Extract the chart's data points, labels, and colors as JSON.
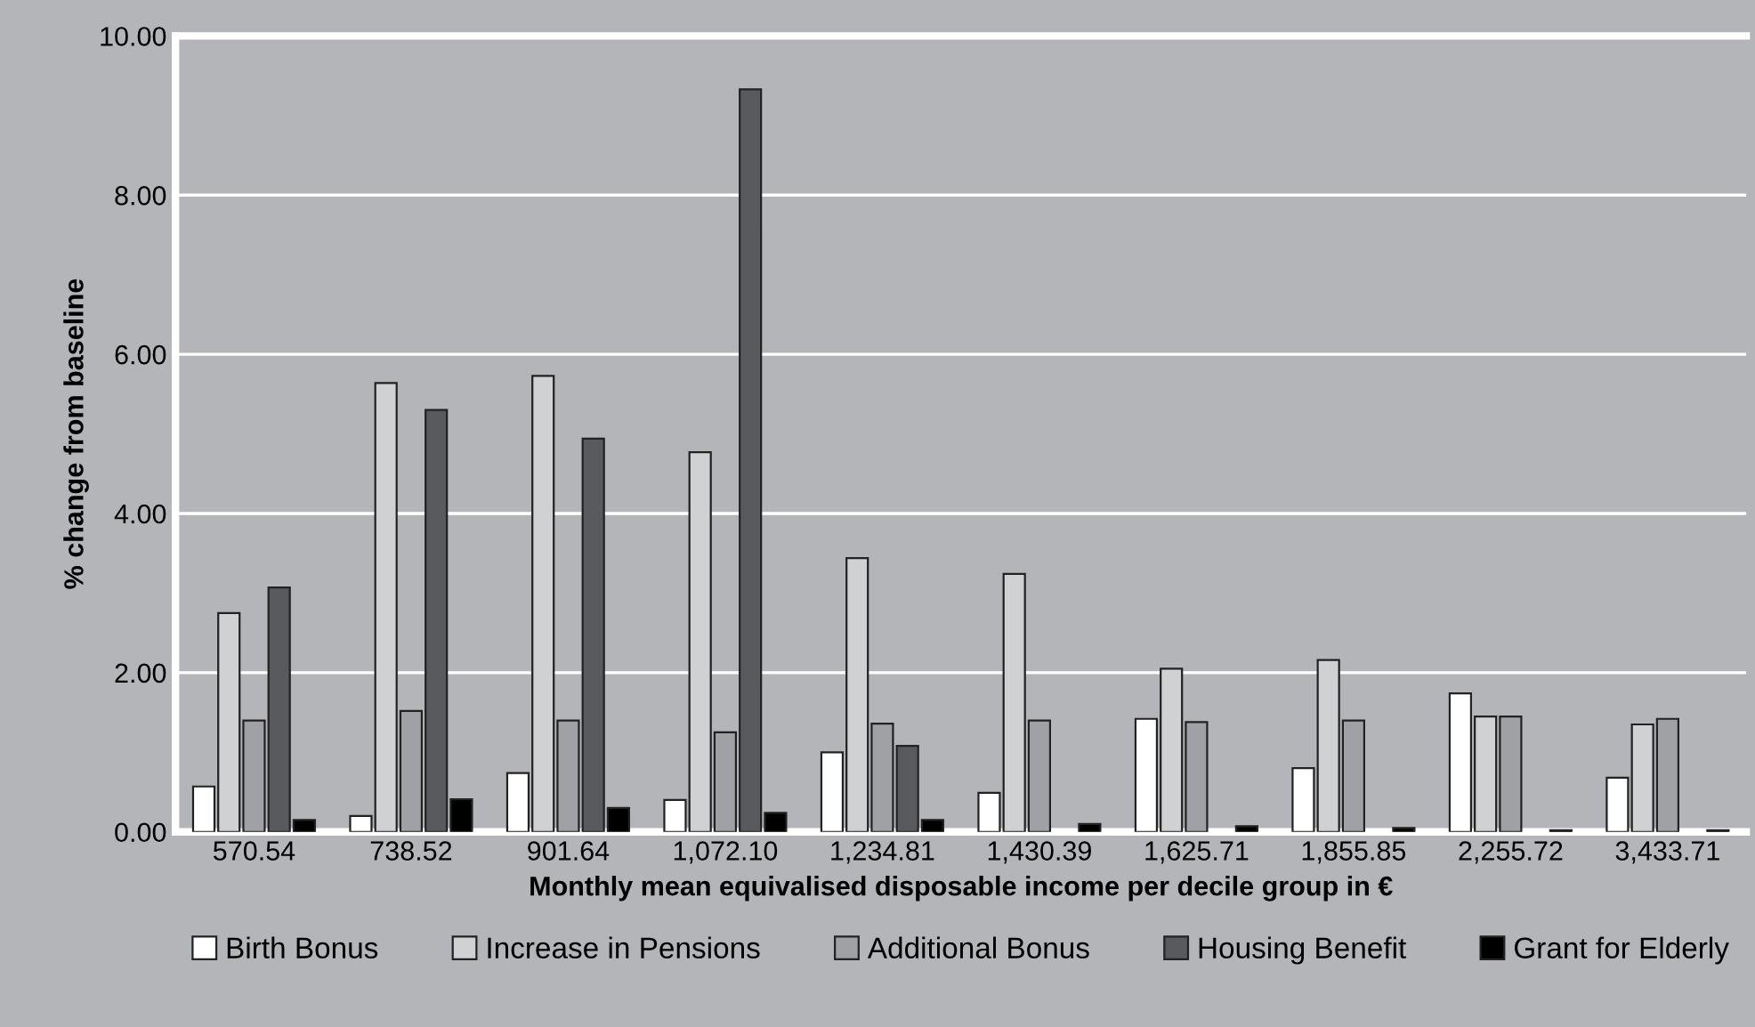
{
  "chart_data": {
    "type": "bar",
    "xlabel": "Monthly mean equivalised disposable income per decile group in €",
    "ylabel": "% change from baseline",
    "categories": [
      "570.54",
      "738.52",
      "901.64",
      "1,072.10",
      "1,234.81",
      "1,430.39",
      "1,625.71",
      "1,855.85",
      "2,255.72",
      "3,433.71"
    ],
    "series": [
      {
        "name": "Birth Bonus",
        "color": "#ffffff",
        "values": [
          0.57,
          0.2,
          0.74,
          0.4,
          1.0,
          0.49,
          1.42,
          0.8,
          1.74,
          0.68
        ]
      },
      {
        "name": "Increase in Pensions",
        "color": "#d0d1d3",
        "values": [
          2.75,
          5.64,
          5.73,
          4.77,
          3.44,
          3.24,
          2.05,
          2.16,
          1.45,
          1.35
        ]
      },
      {
        "name": "Additional Bonus",
        "color": "#9fa1a5",
        "values": [
          1.4,
          1.52,
          1.4,
          1.25,
          1.36,
          1.4,
          1.38,
          1.4,
          1.45,
          1.42
        ]
      },
      {
        "name": "Housing Benefit",
        "color": "#595a5e",
        "values": [
          3.07,
          5.3,
          4.94,
          9.33,
          1.08,
          null,
          null,
          null,
          null,
          null
        ]
      },
      {
        "name": "Grant for Elderly",
        "color": "#000000",
        "values": [
          0.15,
          0.41,
          0.3,
          0.24,
          0.15,
          0.1,
          0.07,
          0.05,
          0.02,
          0.02
        ]
      }
    ],
    "ylim": [
      0,
      10
    ],
    "yticks": [
      {
        "value": 0,
        "label": "0.00"
      },
      {
        "value": 2,
        "label": "2.00"
      },
      {
        "value": 4,
        "label": "4.00"
      },
      {
        "value": 6,
        "label": "6.00"
      },
      {
        "value": 8,
        "label": "8.00"
      },
      {
        "value": 10,
        "label": "10.00"
      }
    ],
    "grid": "y",
    "legend": "bottom"
  }
}
